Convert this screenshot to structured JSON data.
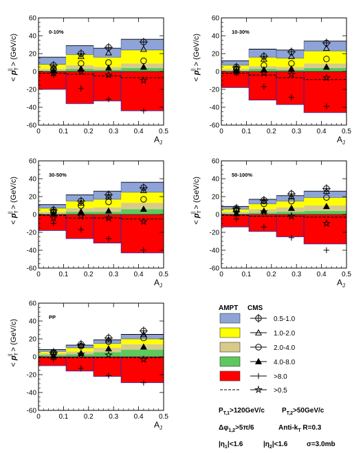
{
  "colors": {
    "b0": "#8ea4d8",
    "b1": "#ffff00",
    "b2": "#d8cb8a",
    "b3": "#5dc85d",
    "b4": "#ff0000",
    "edge_b0": "#3b4f9a",
    "edge_b4": "#2a2ab0"
  },
  "chart_data": [
    {
      "type": "bar",
      "panel": "0-10%",
      "label": "0-10%",
      "xlabel": "A_J",
      "ylabel": "< p_T^|| > (GeV/c)",
      "xlim": [
        0,
        0.5
      ],
      "ylim": [
        -60,
        60
      ],
      "x_ticks": [
        "0",
        "0.1",
        "0.2",
        "0.3",
        "0.4",
        "0.5"
      ],
      "y_ticks": [
        "-60",
        "-40",
        "-20",
        "0",
        "20",
        "40",
        "60"
      ],
      "bins": [
        [
          0,
          0.11
        ],
        [
          0.11,
          0.22
        ],
        [
          0.22,
          0.33
        ],
        [
          0.33,
          0.5
        ]
      ],
      "ampt_stack": {
        "0.5-1.0": [
          8,
          10,
          10,
          12
        ],
        "1.0-2.0": [
          5,
          12,
          11,
          15
        ],
        "2.0-4.0": [
          2,
          4,
          3,
          5
        ],
        "4.0-8.0": [
          1,
          3,
          2,
          4
        ],
        ">8.0": [
          -20,
          -36,
          -33,
          -44
        ]
      },
      "cms_x": [
        0.06,
        0.17,
        0.28,
        0.42
      ],
      "cms": {
        "0.5-1.0": [
          7,
          20,
          27,
          33
        ],
        "1.0-2.0": [
          4,
          17,
          21,
          25
        ],
        "2.0-4.0": [
          3,
          9,
          10,
          12
        ],
        "4.0-8.0": [
          1,
          3,
          4,
          5
        ],
        ">8.0": [
          -4,
          -19,
          -31,
          -44
        ],
        ">0.5": [
          -2,
          0,
          -4,
          -10
        ]
      },
      "dashed_total": [
        -2,
        -3,
        -5,
        -7
      ]
    },
    {
      "type": "bar",
      "panel": "10-30%",
      "label": "10-30%",
      "xlabel": "A_J",
      "ylabel": "< p_T^|| > (GeV/c)",
      "xlim": [
        0,
        0.5
      ],
      "ylim": [
        -60,
        60
      ],
      "x_ticks": [
        "0",
        "0.1",
        "0.2",
        "0.3",
        "0.4",
        "0.5"
      ],
      "y_ticks": [
        "-60",
        "-40",
        "-20",
        "0",
        "20",
        "40",
        "60"
      ],
      "bins": [
        [
          0,
          0.11
        ],
        [
          0.11,
          0.22
        ],
        [
          0.22,
          0.33
        ],
        [
          0.33,
          0.5
        ]
      ],
      "ampt_stack": {
        "0.5-1.0": [
          5,
          9,
          9,
          11
        ],
        "1.0-2.0": [
          4,
          10,
          10,
          14
        ],
        "2.0-4.0": [
          2,
          3,
          3,
          5
        ],
        "4.0-8.0": [
          1,
          3,
          2,
          4
        ],
        ">8.0": [
          -18,
          -32,
          -37,
          -46
        ]
      },
      "cms_x": [
        0.06,
        0.17,
        0.28,
        0.42
      ],
      "cms": {
        "0.5-1.0": [
          5,
          17,
          22,
          32
        ],
        "1.0-2.0": [
          4,
          14,
          17,
          26
        ],
        "2.0-4.0": [
          3,
          7,
          9,
          14
        ],
        "4.0-8.0": [
          1,
          2,
          3,
          5
        ],
        ">8.0": [
          -2,
          -17,
          -29,
          -39
        ],
        ">0.5": [
          -1,
          -2,
          -3,
          -7
        ]
      },
      "dashed_total": [
        -2,
        -4,
        -7,
        -9
      ]
    },
    {
      "type": "bar",
      "panel": "30-50%",
      "label": "30-50%",
      "xlabel": "A_J",
      "ylabel": "< p_T^|| > (GeV/c)",
      "xlim": [
        0,
        0.5
      ],
      "ylim": [
        -60,
        60
      ],
      "x_ticks": [
        "0",
        "0.1",
        "0.2",
        "0.3",
        "0.4",
        "0.5"
      ],
      "y_ticks": [
        "-60",
        "-40",
        "-20",
        "0",
        "20",
        "40",
        "60"
      ],
      "bins": [
        [
          0,
          0.11
        ],
        [
          0.11,
          0.22
        ],
        [
          0.22,
          0.33
        ],
        [
          0.33,
          0.5
        ]
      ],
      "ampt_stack": {
        "0.5-1.0": [
          4,
          7,
          9,
          11
        ],
        "1.0-2.0": [
          4,
          8,
          9,
          12
        ],
        "2.0-4.0": [
          2,
          4,
          5,
          7
        ],
        "4.0-8.0": [
          1,
          3,
          3,
          6
        ],
        ">8.0": [
          -18,
          -27,
          -32,
          -43
        ]
      },
      "cms_x": [
        0.06,
        0.17,
        0.28,
        0.42
      ],
      "cms": {
        "0.5-1.0": [
          5,
          15,
          22,
          30
        ],
        "1.0-2.0": [
          4,
          13,
          20,
          27
        ],
        "2.0-4.0": [
          3,
          10,
          14,
          17
        ],
        "4.0-8.0": [
          1,
          3,
          4,
          6
        ],
        ">8.0": [
          -10,
          -17,
          -27,
          -40
        ],
        ">0.5": [
          -4,
          -2,
          -4,
          -8
        ]
      },
      "dashed_total": [
        -1,
        -4,
        -4,
        -5
      ]
    },
    {
      "type": "bar",
      "panel": "50-100%",
      "label": "50-100%",
      "xlabel": "A_J",
      "ylabel": "< p_T^|| > (GeV/c)",
      "xlim": [
        0,
        0.5
      ],
      "ylim": [
        -60,
        60
      ],
      "x_ticks": [
        "0",
        "0.1",
        "0.2",
        "0.3",
        "0.4",
        "0.5"
      ],
      "y_ticks": [
        "-60",
        "-40",
        "-20",
        "0",
        "20",
        "40",
        "60"
      ],
      "bins": [
        [
          0,
          0.11
        ],
        [
          0.11,
          0.22
        ],
        [
          0.22,
          0.33
        ],
        [
          0.33,
          0.5
        ]
      ],
      "ampt_stack": {
        "0.5-1.0": [
          3,
          5,
          6,
          7
        ],
        "1.0-2.0": [
          3,
          6,
          7,
          9
        ],
        "2.0-4.0": [
          2,
          4,
          5,
          6
        ],
        "4.0-8.0": [
          1,
          2,
          3,
          4
        ],
        ">8.0": [
          -14,
          -19,
          -25,
          -33
        ]
      },
      "cms_x": [
        0.06,
        0.17,
        0.28,
        0.42
      ],
      "cms": {
        "0.5-1.0": [
          7,
          16,
          23,
          29
        ],
        "1.0-2.0": [
          6,
          15,
          20,
          26
        ],
        "2.0-4.0": [
          5,
          12,
          15,
          19
        ],
        "4.0-8.0": [
          1,
          4,
          7,
          9
        ],
        ">8.0": [
          -5,
          -14,
          -26,
          -40
        ],
        ">0.5": [
          2,
          3,
          -2,
          -10
        ]
      },
      "dashed_total": [
        -1,
        -2,
        -2,
        -3
      ]
    },
    {
      "type": "bar",
      "panel": "PP",
      "label": "PP",
      "xlabel": "A_J",
      "ylabel": "< p_T^|| > (GeV/c)",
      "xlim": [
        0,
        0.5
      ],
      "ylim": [
        -60,
        60
      ],
      "x_ticks": [
        "0",
        "0.1",
        "0.2",
        "0.3",
        "0.4",
        "0.5"
      ],
      "y_ticks": [
        "-60",
        "-40",
        "-20",
        "0",
        "20",
        "40",
        "60"
      ],
      "bins": [
        [
          0,
          0.11
        ],
        [
          0.11,
          0.22
        ],
        [
          0.22,
          0.33
        ],
        [
          0.33,
          0.5
        ]
      ],
      "ampt_stack": {
        "0.5-1.0": [
          2,
          3,
          4,
          5
        ],
        "1.0-2.0": [
          2,
          4,
          5,
          6
        ],
        "2.0-4.0": [
          2,
          3,
          5,
          6
        ],
        "4.0-8.0": [
          2,
          3,
          5,
          8
        ],
        ">8.0": [
          -10,
          -16,
          -22,
          -29
        ]
      },
      "cms_x": [
        0.06,
        0.17,
        0.28,
        0.42
      ],
      "cms": {
        "0.5-1.0": [
          5,
          14,
          21,
          29
        ],
        "1.0-2.0": [
          5,
          13,
          19,
          25
        ],
        "2.0-4.0": [
          4,
          12,
          17,
          21
        ],
        "4.0-8.0": [
          1,
          4,
          9,
          11
        ],
        ">8.0": [
          -3,
          -13,
          -21,
          -29
        ],
        ">0.5": [
          2,
          3,
          2,
          -3
        ]
      },
      "dashed_total": [
        -1,
        -1,
        -1,
        -1
      ]
    }
  ],
  "legend": {
    "ampt_header": "AMPT",
    "cms_header": "CMS",
    "entries": [
      {
        "bin": "0.5-1.0",
        "label": "0.5-1.0",
        "marker": "cross-circle",
        "fill": "b0"
      },
      {
        "bin": "1.0-2.0",
        "label": "1.0-2.0",
        "marker": "triangle-open",
        "fill": "b1"
      },
      {
        "bin": "2.0-4.0",
        "label": "2.0-4.0",
        "marker": "circle-open",
        "fill": "b2"
      },
      {
        "bin": "4.0-8.0",
        "label": "4.0-8.0",
        "marker": "triangle-filled",
        "fill": "b3"
      },
      {
        "bin": ">8.0",
        "label": ">8.0",
        "marker": "plus",
        "fill": "b4"
      },
      {
        "bin": ">0.5",
        "label": ">0.5",
        "marker": "star",
        "fill": "dashed"
      }
    ],
    "cuts": {
      "line1_left": "P",
      "line1_left_sub": "T,1",
      "line1_left_rest": ">120GeV/c",
      "line1_right": "P",
      "line1_right_sub": "T,2",
      "line1_right_rest": ">50GeV/c",
      "line2_left": "Δφ",
      "line2_left_sub": "1,2",
      "line2_left_rest": ">5π/6",
      "line2_right": "Anti-k",
      "line2_right_sub": "T",
      "line2_right_rest": " R=0.3",
      "line3_a": "|η",
      "line3_a_sub": "1",
      "line3_a_rest": "|<1.6",
      "line3_b": "|η",
      "line3_b_sub": "2",
      "line3_b_rest": "|<1.6",
      "line3_c": "σ=3.0mb"
    }
  }
}
